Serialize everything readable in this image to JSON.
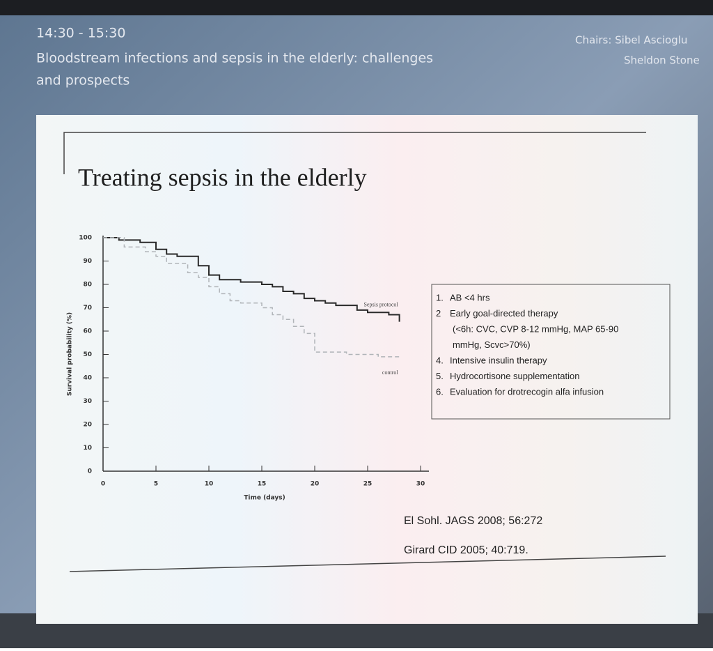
{
  "session": {
    "time": "14:30 - 15:30",
    "title_line1": "Bloodstream infections and sepsis in the elderly: challenges",
    "title_line2": "and prospects",
    "chairs_line1": "Chairs: Sibel Ascioglu",
    "chairs_line2": "Sheldon Stone"
  },
  "slide": {
    "title": "Treating sepsis in the elderly",
    "list": [
      {
        "num": "1.",
        "text": "AB <4 hrs"
      },
      {
        "num": "2",
        "text": "Early goal-directed therapy"
      },
      {
        "text": "(<6h: CVC, CVP 8-12 mmHg, MAP 65-90"
      },
      {
        "text": "mmHg, Scvc>70%)"
      },
      {
        "num": "4.",
        "text": "Intensive insulin therapy"
      },
      {
        "num": "5.",
        "text": "Hydrocortisone supplementation"
      },
      {
        "num": "6.",
        "text": "Evaluation for drotrecogin alfa infusion"
      }
    ],
    "references": [
      "El Sohl. JAGS 2008; 56:272",
      "Girard CID 2005; 40:719."
    ]
  },
  "chart_data": {
    "type": "line",
    "step": true,
    "x_label": "Time (days)",
    "y_label": "Survival probability (%)",
    "xlim": [
      0,
      30
    ],
    "xticks": [
      0,
      5,
      10,
      15,
      20,
      25,
      30
    ],
    "ylim": [
      0,
      100
    ],
    "yticks": [
      0,
      10,
      20,
      30,
      40,
      50,
      60,
      70,
      80,
      90,
      100
    ],
    "grid": false,
    "series": [
      {
        "name": "Sepsis protocol",
        "color": "#2a2a2a",
        "dashed": false,
        "x": [
          0,
          1.5,
          3.5,
          5,
          6,
          7,
          9,
          10,
          11,
          13,
          15,
          16,
          17,
          18,
          19,
          20,
          21,
          22,
          24,
          25,
          27,
          28
        ],
        "values": [
          100,
          99,
          98,
          95,
          93,
          92,
          88,
          84,
          82,
          81,
          80,
          79,
          77,
          76,
          74,
          73,
          72,
          71,
          69,
          68,
          67,
          64
        ]
      },
      {
        "name": "control",
        "color": "#b0b4b8",
        "dashed": true,
        "x": [
          0,
          2,
          4,
          5,
          6,
          8,
          9,
          10,
          11,
          12,
          13,
          15,
          16,
          17,
          18,
          19,
          20,
          21,
          23,
          25,
          26,
          28
        ],
        "values": [
          100,
          96,
          94,
          92,
          89,
          85,
          83,
          79,
          76,
          73,
          72,
          70,
          67,
          65,
          62,
          59,
          51,
          51,
          50,
          50,
          49,
          48
        ]
      }
    ]
  }
}
